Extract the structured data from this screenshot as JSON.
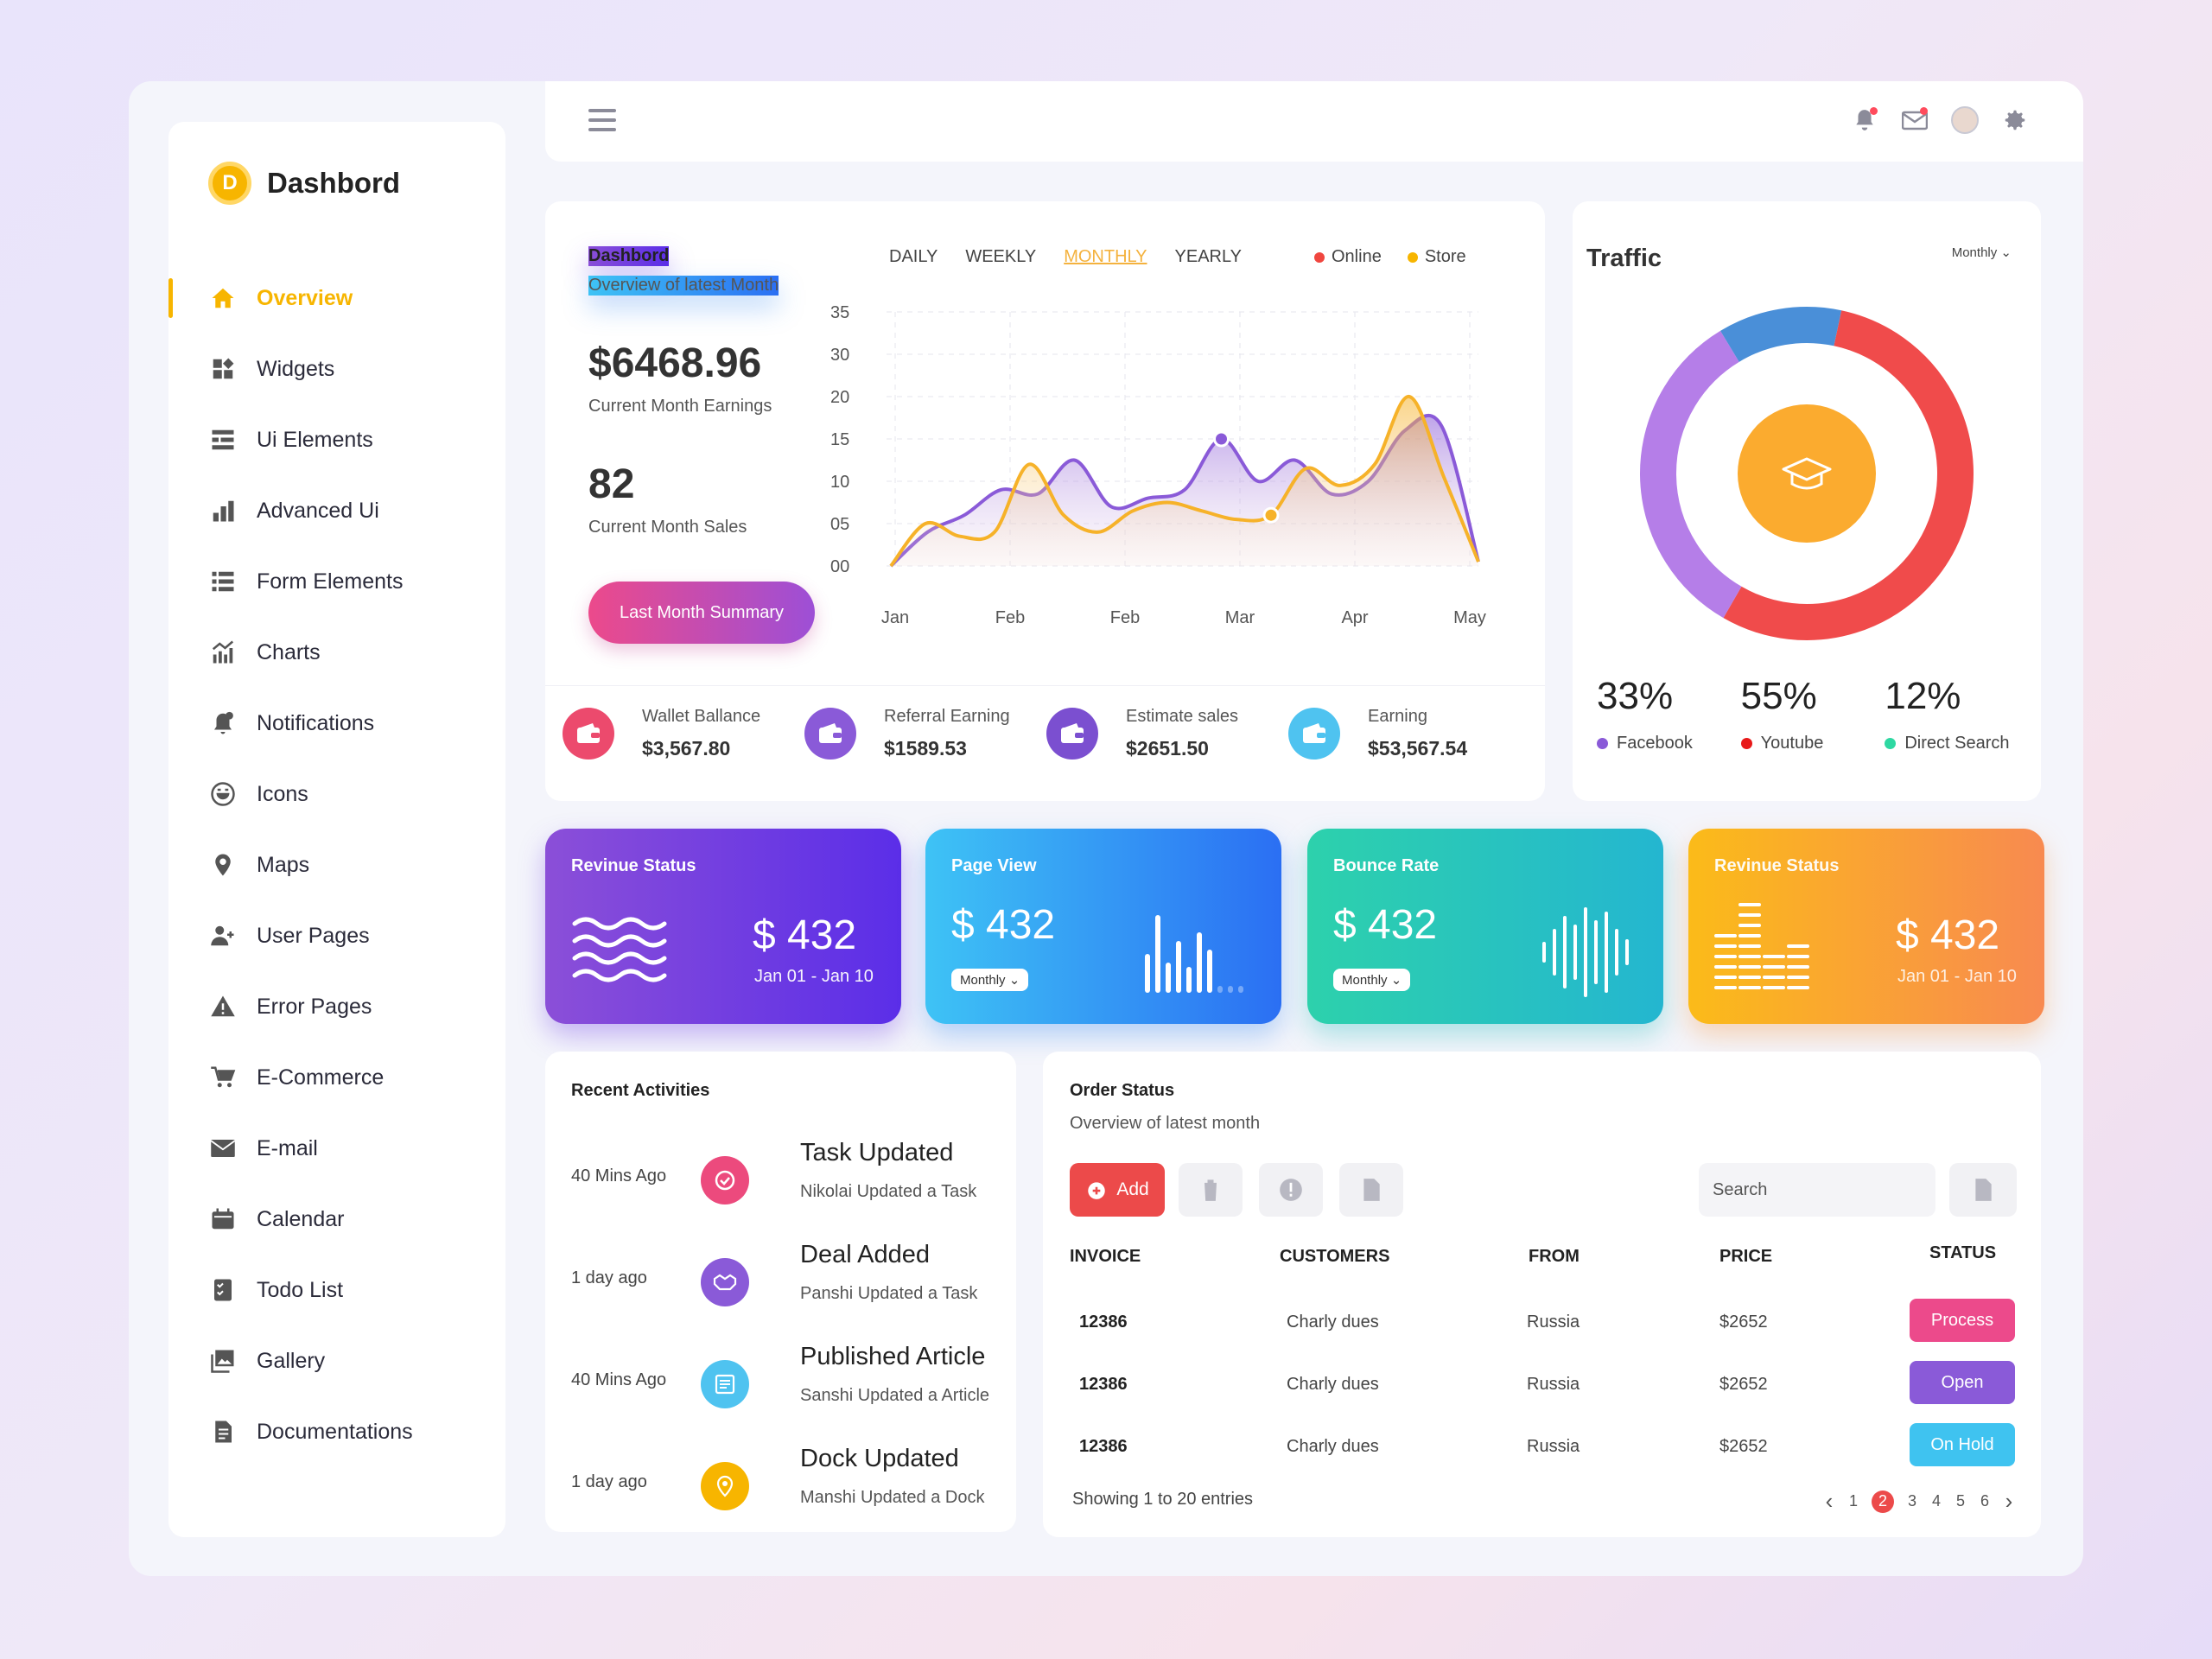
{
  "brand": {
    "logo_letter": "D",
    "name": "Dashbord"
  },
  "sidebar": {
    "items": [
      {
        "label": "Overview",
        "icon": "home-icon"
      },
      {
        "label": "Widgets",
        "icon": "widgets-icon"
      },
      {
        "label": "Ui Elements",
        "icon": "ui-elements-icon"
      },
      {
        "label": "Advanced Ui",
        "icon": "bar-chart-icon"
      },
      {
        "label": "Form Elements",
        "icon": "list-icon"
      },
      {
        "label": "Charts",
        "icon": "charts-icon"
      },
      {
        "label": "Notifications",
        "icon": "bell-icon"
      },
      {
        "label": "Icons",
        "icon": "smiley-icon"
      },
      {
        "label": "Maps",
        "icon": "map-pin-icon"
      },
      {
        "label": "User Pages",
        "icon": "user-add-icon"
      },
      {
        "label": "Error Pages",
        "icon": "warning-icon"
      },
      {
        "label": "E-Commerce",
        "icon": "cart-icon"
      },
      {
        "label": "E-mail",
        "icon": "envelope-icon"
      },
      {
        "label": "Calendar",
        "icon": "calendar-icon"
      },
      {
        "label": "Todo List",
        "icon": "todo-icon"
      },
      {
        "label": "Gallery",
        "icon": "gallery-icon"
      },
      {
        "label": "Documentations",
        "icon": "document-icon"
      }
    ]
  },
  "topbar": {
    "icons": [
      "bell-icon",
      "mail-icon",
      "avatar",
      "gear-icon"
    ]
  },
  "earnings": {
    "title": "Dashbord",
    "subtitle": "Overview of latest Month",
    "amount": "$6468.96",
    "amount_label": "Current Month Earnings",
    "sales": "82",
    "sales_label": "Current Month Sales",
    "button": "Last Month Summary",
    "periods": [
      "DAILY",
      "WEEKLY",
      "MONTHLY",
      "YEARLY"
    ],
    "selected_period": "MONTHLY",
    "legend": [
      {
        "name": "Online",
        "color": "#f0463f"
      },
      {
        "name": "Store",
        "color": "#f7b500"
      }
    ]
  },
  "chart_data": {
    "type": "area",
    "x_labels": [
      "Jan",
      "Feb",
      "Feb",
      "Mar",
      "Apr",
      "May"
    ],
    "y_ticks": [
      "00",
      "05",
      "10",
      "15",
      "20",
      "30",
      "35"
    ],
    "series": [
      {
        "name": "Online",
        "color": "#8a5ad8",
        "values": [
          0,
          4,
          6,
          9,
          8.5,
          12.5,
          7,
          8,
          9,
          15,
          10,
          12.5,
          8.5,
          10,
          16,
          16.5,
          0.5
        ]
      },
      {
        "name": "Store",
        "color": "#f6b229",
        "values": [
          0,
          5,
          3.5,
          4,
          12,
          6,
          4,
          6.5,
          7.5,
          6.5,
          5.5,
          6,
          11.5,
          9.5,
          12,
          20,
          10.5,
          0.5
        ]
      }
    ],
    "grid": true
  },
  "stats": [
    {
      "label": "Wallet Ballance",
      "value": "$3,567.80",
      "color": "#ec4a6d",
      "icon": "wallet-icon"
    },
    {
      "label": "Referral Earning",
      "value": "$1589.53",
      "color": "#8a5ad8",
      "icon": "wallet-icon"
    },
    {
      "label": "Estimate sales",
      "value": "$2651.50",
      "color": "#7b4fd0",
      "icon": "card-icon"
    },
    {
      "label": "Earning",
      "value": "$53,567.54",
      "color": "#4fc3f0",
      "icon": "card-icon"
    }
  ],
  "traffic": {
    "title": "Traffic",
    "period": "Monthly",
    "center_icon": "graduation-cap-icon",
    "segments": [
      {
        "name": "Facebook",
        "pct": "33%",
        "value": 33,
        "color": "#b57ee8"
      },
      {
        "name": "Youtube",
        "pct": "55%",
        "value": 55,
        "color": "#f04b4b"
      },
      {
        "name": "Direct Search",
        "pct": "12%",
        "value": 12,
        "color": "#4a8fd8"
      }
    ],
    "legend_colors": [
      "#8a5ad8",
      "#e81919",
      "#2ed8a2"
    ]
  },
  "tiles": [
    {
      "title": "Revinue Status",
      "amount": "$ 432",
      "range": "Jan 01 - Jan 10"
    },
    {
      "title": "Page View",
      "amount": "$ 432",
      "select": "Monthly"
    },
    {
      "title": "Bounce Rate",
      "amount": "$ 432",
      "select": "Monthly"
    },
    {
      "title": "Revinue Status",
      "amount": "$ 432",
      "range": "Jan 01 - Jan 10"
    }
  ],
  "recent": {
    "title": "Recent Activities",
    "items": [
      {
        "time": "40 Mins Ago",
        "title": "Task Updated",
        "desc": "Nikolai Updated a Task",
        "color": "#ec4a7d",
        "icon": "refresh-check-icon"
      },
      {
        "time": "1 day ago",
        "title": "Deal Added",
        "desc": "Panshi Updated a Task",
        "color": "#8a5ad8",
        "icon": "handshake-icon"
      },
      {
        "time": "40 Mins Ago",
        "title": "Published Article",
        "desc": "Sanshi Updated a Article",
        "color": "#4fc3f0",
        "icon": "newspaper-icon"
      },
      {
        "time": "1 day ago",
        "title": "Dock Updated",
        "desc": "Manshi Updated a Dock",
        "color": "#f7b500",
        "icon": "pin-icon"
      }
    ]
  },
  "order": {
    "title": "Order Status",
    "subtitle": "Overview of latest month",
    "add_label": "Add",
    "search_placeholder": "Search",
    "columns": [
      "INVOICE",
      "CUSTOMERS",
      "FROM",
      "PRICE",
      "STATUS"
    ],
    "rows": [
      {
        "invoice": "12386",
        "customer": "Charly dues",
        "from": "Russia",
        "price": "$2652",
        "status": "Process",
        "color": "#ec4a8b"
      },
      {
        "invoice": "12386",
        "customer": "Charly dues",
        "from": "Russia",
        "price": "$2652",
        "status": "Open",
        "color": "#8a5ad8"
      },
      {
        "invoice": "12386",
        "customer": "Charly dues",
        "from": "Russia",
        "price": "$2652",
        "status": "On Hold",
        "color": "#3fc3f0"
      }
    ],
    "showing": "Showing 1 to 20 entries",
    "pages": [
      "1",
      "2",
      "3",
      "4",
      "5",
      "6"
    ],
    "current_page": "2"
  }
}
